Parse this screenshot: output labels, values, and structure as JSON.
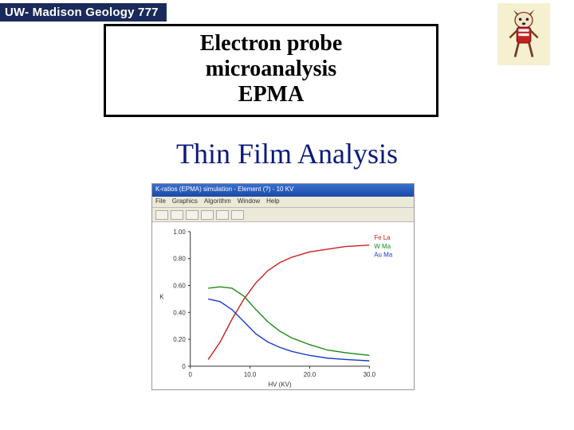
{
  "banner": {
    "text": "UW- Madison Geology  777"
  },
  "title": {
    "line1": "Electron probe",
    "line2": "microanalysis",
    "line3": "EPMA"
  },
  "subtitle": "Thin Film Analysis",
  "screenshot": {
    "windowTitle": "K-ratios (EPMA) simulation - Element (?) - 10 KV",
    "menu": [
      "File",
      "Graphics",
      "Algorithm",
      "Window",
      "Help"
    ],
    "plot": {
      "type": "line",
      "xlabel": "HV (KV)",
      "ylabel": "K",
      "xlim": [
        0,
        30
      ],
      "ylim": [
        0,
        1.0
      ],
      "xticks": [
        0,
        10,
        20,
        30
      ],
      "xtickLabels": [
        "0",
        "10.0",
        "20.0",
        "30.0"
      ],
      "yticks": [
        0,
        0.2,
        0.4,
        0.6,
        0.8,
        1.0
      ],
      "ytickLabels": [
        "0",
        "0.20",
        "0.40",
        "0.60",
        "0.80",
        "1.00"
      ],
      "background": "#ffffff",
      "axisColor": "#333333",
      "series": [
        {
          "name": "Fe La",
          "color": "#cc2020",
          "x": [
            3,
            5,
            7,
            9,
            11,
            13,
            15,
            17,
            20,
            23,
            26,
            30
          ],
          "y": [
            0.05,
            0.18,
            0.35,
            0.5,
            0.62,
            0.71,
            0.77,
            0.81,
            0.85,
            0.87,
            0.89,
            0.9
          ]
        },
        {
          "name": "W Ma",
          "color": "#1a8a1a",
          "x": [
            3,
            5,
            7,
            9,
            11,
            13,
            15,
            17,
            20,
            23,
            26,
            30
          ],
          "y": [
            0.58,
            0.59,
            0.58,
            0.52,
            0.42,
            0.33,
            0.26,
            0.21,
            0.16,
            0.12,
            0.1,
            0.08
          ]
        },
        {
          "name": "Au Ma",
          "color": "#1a3acc",
          "x": [
            3,
            5,
            7,
            9,
            11,
            13,
            15,
            17,
            20,
            23,
            26,
            30
          ],
          "y": [
            0.5,
            0.48,
            0.42,
            0.33,
            0.24,
            0.18,
            0.14,
            0.11,
            0.08,
            0.06,
            0.05,
            0.04
          ]
        }
      ]
    }
  }
}
